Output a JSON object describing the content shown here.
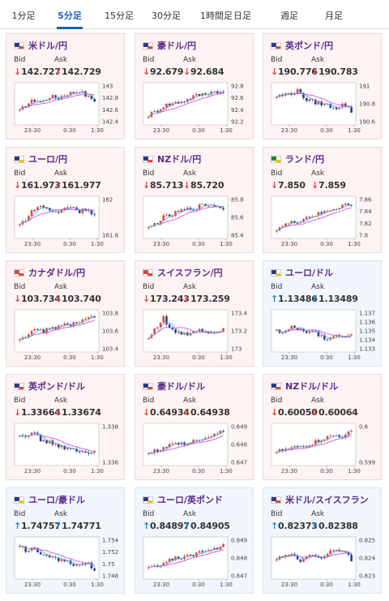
{
  "tabs": [
    {
      "label": "1分足",
      "active": false
    },
    {
      "label": "5分足",
      "active": true
    },
    {
      "label": "15分足",
      "active": false
    },
    {
      "label": "30分足",
      "active": false
    },
    {
      "label": "1時間足",
      "active": false
    },
    {
      "label": "日足",
      "active": false
    },
    {
      "label": "週足",
      "active": false
    },
    {
      "label": "月足",
      "active": false
    }
  ],
  "labels": {
    "bid": "Bid",
    "ask": "Ask"
  },
  "colors": {
    "up_candle": "#e0463b",
    "down_candle": "#2b3a8f",
    "ma_line": "#d54bd8",
    "ma_line2": "#4bb7d8",
    "up_arrow": "#2a7fd4",
    "down_arrow": "#e0463b"
  },
  "cards": [
    {
      "pair": "米ドル/円",
      "direction": "down",
      "bid": "142.727",
      "ask": "142.729",
      "flag": "us",
      "y_ticks": [
        "143",
        "142.8",
        "142.6",
        "142.4"
      ],
      "x_ticks": [
        "23:30",
        "0:30",
        "1:30"
      ]
    },
    {
      "pair": "豪ドル/円",
      "direction": "down",
      "bid": "92.679",
      "ask": "92.684",
      "flag": "au",
      "y_ticks": [
        "92.8",
        "92.6",
        "92.4",
        "92.2"
      ],
      "x_ticks": [
        "23:30",
        "0:30",
        "1:30"
      ]
    },
    {
      "pair": "英ポンド/円",
      "direction": "down",
      "bid": "190.776",
      "ask": "190.783",
      "flag": "gb",
      "y_ticks": [
        "191",
        "190.8",
        "190.6"
      ],
      "x_ticks": [
        "23:30",
        "0:30",
        "1:30"
      ]
    },
    {
      "pair": "ユーロ/円",
      "direction": "down",
      "bid": "161.973",
      "ask": "161.977",
      "flag": "eu",
      "y_ticks": [
        "162",
        "161.8"
      ],
      "x_ticks": [
        "23:30",
        "0:30",
        "1:30"
      ]
    },
    {
      "pair": "NZドル/円",
      "direction": "down",
      "bid": "85.713",
      "ask": "85.720",
      "flag": "nz",
      "y_ticks": [
        "85.8",
        "85.6",
        "85.4"
      ],
      "x_ticks": [
        "23:30",
        "0:30",
        "1:30"
      ]
    },
    {
      "pair": "ランド/円",
      "direction": "down",
      "bid": "7.850",
      "ask": "7.859",
      "flag": "za",
      "y_ticks": [
        "7.86",
        "7.84",
        "7.82",
        "7.8"
      ],
      "x_ticks": [
        "23:30",
        "0:30",
        "1:30"
      ]
    },
    {
      "pair": "カナダドル/円",
      "direction": "down",
      "bid": "103.734",
      "ask": "103.740",
      "flag": "ca",
      "y_ticks": [
        "103.8",
        "103.6",
        "103.4"
      ],
      "x_ticks": [
        "23:30",
        "0:30",
        "1:30"
      ]
    },
    {
      "pair": "スイスフラン/円",
      "direction": "down",
      "bid": "173.243",
      "ask": "173.259",
      "flag": "ch",
      "y_ticks": [
        "173.4",
        "173.2",
        "173"
      ],
      "x_ticks": [
        "23:30",
        "0:30",
        "1:30"
      ]
    },
    {
      "pair": "ユーロ/ドル",
      "direction": "up",
      "bid": "1.13486",
      "ask": "1.13489",
      "flag": "eu",
      "y_ticks": [
        "1.137",
        "1.136",
        "1.135",
        "1.134",
        "1.133"
      ],
      "x_ticks": [
        "23:30",
        "0:30",
        "1:30"
      ]
    },
    {
      "pair": "英ポンド/ドル",
      "direction": "down",
      "bid": "1.33664",
      "ask": "1.33674",
      "flag": "gb",
      "y_ticks": [
        "1.338",
        "1.336"
      ],
      "x_ticks": [
        "23:30",
        "0:30",
        "1:30"
      ]
    },
    {
      "pair": "豪ドル/ドル",
      "direction": "down",
      "bid": "0.64934",
      "ask": "0.64938",
      "flag": "au",
      "y_ticks": [
        "0.649",
        "0.648",
        "0.647"
      ],
      "x_ticks": [
        "23:30",
        "0:30",
        "1:30"
      ]
    },
    {
      "pair": "NZドル/ドル",
      "direction": "down",
      "bid": "0.60050",
      "ask": "0.60064",
      "flag": "nz",
      "y_ticks": [
        "0.6",
        "0.599"
      ],
      "x_ticks": [
        "23:30",
        "0:30",
        "1:30"
      ]
    },
    {
      "pair": "ユーロ/豪ドル",
      "direction": "up",
      "bid": "1.74757",
      "ask": "1.74771",
      "flag": "eu",
      "y_ticks": [
        "1.754",
        "1.752",
        "1.75",
        "1.748"
      ],
      "x_ticks": [
        "23:30",
        "0:30",
        "1:30"
      ]
    },
    {
      "pair": "ユーロ/英ポンド",
      "direction": "up",
      "bid": "0.84897",
      "ask": "0.84905",
      "flag": "eu",
      "y_ticks": [
        "0.849",
        "0.848",
        "0.847"
      ],
      "x_ticks": [
        "23:30",
        "0:30",
        "1:30"
      ]
    },
    {
      "pair": "米ドル/スイスフラン",
      "direction": "up",
      "bid": "0.82373",
      "ask": "0.82388",
      "flag": "us",
      "y_ticks": [
        "0.825",
        "0.824",
        "0.823"
      ],
      "x_ticks": [
        "23:30",
        "0:30",
        "1:30"
      ]
    }
  ]
}
